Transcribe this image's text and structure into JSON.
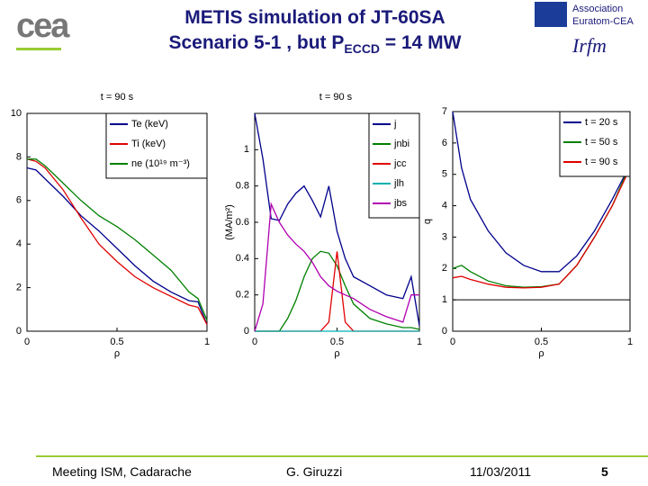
{
  "header": {
    "title_line1": "METIS simulation of JT-60SA",
    "title_line2_pre": "Scenario 5-1 , but P",
    "title_line2_sub": "ECCD",
    "title_line2_post": " = 14 MW",
    "logo_left": "cea",
    "logo_right_line1": "Association",
    "logo_right_line2": "Euratom-CEA",
    "logo_right_mark": "Irfm"
  },
  "footer": {
    "meeting": "Meeting ISM, Cadarache",
    "author": "G. Giruzzi",
    "date": "11/03/2011",
    "page": "5"
  },
  "chart_data": [
    {
      "type": "line",
      "title": "t = 90 s",
      "xlabel": "ρ",
      "xlim": [
        0,
        1
      ],
      "ylim": [
        0,
        10
      ],
      "xticks": [
        0,
        0.5,
        1
      ],
      "yticks": [
        0,
        2,
        4,
        6,
        8,
        10
      ],
      "legend": "upper right",
      "x": [
        0,
        0.05,
        0.1,
        0.2,
        0.3,
        0.4,
        0.5,
        0.6,
        0.7,
        0.8,
        0.9,
        0.95,
        1
      ],
      "series": [
        {
          "name": "Te (keV)",
          "color": "#00008b",
          "values": [
            7.5,
            7.4,
            7.0,
            6.2,
            5.3,
            4.6,
            3.8,
            3.0,
            2.3,
            1.8,
            1.4,
            1.35,
            0.3
          ]
        },
        {
          "name": "Ti (keV)",
          "color": "#e00000",
          "values": [
            7.9,
            7.8,
            7.5,
            6.5,
            5.2,
            4.0,
            3.2,
            2.5,
            2.0,
            1.6,
            1.2,
            1.1,
            0.3
          ]
        },
        {
          "name": "ne (10¹⁹ m⁻³)",
          "color": "#008000",
          "values": [
            7.9,
            7.9,
            7.6,
            6.8,
            6.0,
            5.3,
            4.8,
            4.2,
            3.5,
            2.8,
            1.8,
            1.5,
            0.5
          ]
        }
      ]
    },
    {
      "type": "line",
      "title": "t = 90 s",
      "xlabel": "ρ",
      "ylabel": "(MA/m²)",
      "xlim": [
        0,
        1
      ],
      "ylim": [
        0,
        1.2
      ],
      "xticks": [
        0,
        0.5,
        1
      ],
      "yticks": [
        0,
        0.2,
        0.4,
        0.6,
        0.8,
        1
      ],
      "legend": "upper right",
      "x": [
        0,
        0.05,
        0.1,
        0.15,
        0.2,
        0.25,
        0.3,
        0.35,
        0.4,
        0.45,
        0.5,
        0.55,
        0.6,
        0.7,
        0.8,
        0.9,
        0.95,
        1
      ],
      "series": [
        {
          "name": "j",
          "color": "#00008b",
          "values": [
            1.2,
            0.95,
            0.62,
            0.61,
            0.7,
            0.76,
            0.8,
            0.72,
            0.63,
            0.8,
            0.55,
            0.4,
            0.3,
            0.25,
            0.2,
            0.18,
            0.3,
            0.03
          ]
        },
        {
          "name": "jnbi",
          "color": "#008000",
          "values": [
            0,
            0,
            0,
            0,
            0.07,
            0.17,
            0.3,
            0.4,
            0.44,
            0.43,
            0.36,
            0.25,
            0.15,
            0.07,
            0.04,
            0.02,
            0.02,
            0.01
          ]
        },
        {
          "name": "jcc",
          "color": "#e00000",
          "values": [
            0,
            0,
            0,
            0,
            0,
            0,
            0,
            0,
            0,
            0.05,
            0.44,
            0.05,
            0,
            0,
            0,
            0,
            0,
            0
          ]
        },
        {
          "name": "jlh",
          "color": "#00b0b0",
          "values": [
            0,
            0,
            0,
            0,
            0,
            0,
            0,
            0,
            0,
            0,
            0,
            0,
            0,
            0,
            0,
            0,
            0,
            0
          ]
        },
        {
          "name": "jbs",
          "color": "#b000b0",
          "values": [
            0,
            0.15,
            0.7,
            0.6,
            0.53,
            0.48,
            0.44,
            0.38,
            0.3,
            0.25,
            0.22,
            0.2,
            0.18,
            0.12,
            0.08,
            0.05,
            0.2,
            0.2
          ]
        }
      ]
    },
    {
      "type": "line",
      "ylabel": "q",
      "xlabel": "ρ",
      "xlim": [
        0,
        1
      ],
      "ylim": [
        0,
        7
      ],
      "xticks": [
        0,
        0.5,
        1
      ],
      "yticks": [
        0,
        1,
        2,
        3,
        4,
        5,
        6,
        7
      ],
      "legend": "upper right",
      "hline": 1,
      "x": [
        0,
        0.05,
        0.1,
        0.2,
        0.3,
        0.4,
        0.5,
        0.6,
        0.7,
        0.8,
        0.9,
        1
      ],
      "series": [
        {
          "name": "t = 20 s",
          "color": "#00008b",
          "values": [
            7,
            5.2,
            4.2,
            3.2,
            2.5,
            2.1,
            1.9,
            1.9,
            2.4,
            3.2,
            4.2,
            5.3
          ]
        },
        {
          "name": "t = 50 s",
          "color": "#008000",
          "values": [
            2.0,
            2.1,
            1.9,
            1.6,
            1.45,
            1.4,
            1.42,
            1.5,
            2.1,
            3.0,
            4.0,
            5.3
          ]
        },
        {
          "name": "t = 90 s",
          "color": "#e00000",
          "values": [
            1.7,
            1.75,
            1.65,
            1.5,
            1.4,
            1.38,
            1.4,
            1.5,
            2.1,
            3.0,
            4.0,
            5.2
          ]
        }
      ]
    }
  ]
}
